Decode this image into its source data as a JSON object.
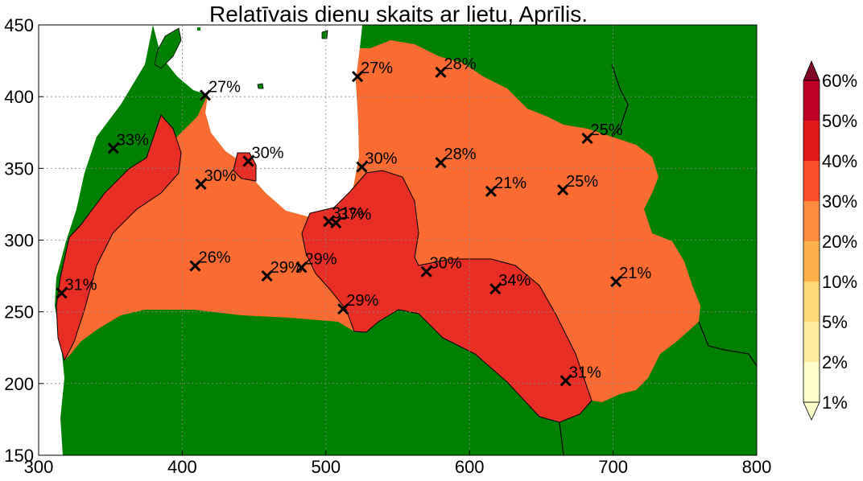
{
  "map": {
    "title": "Relatīvais dienu skaits ar lietu, Aprīlis.",
    "x_ticks": [
      "300",
      "400",
      "500",
      "600",
      "700",
      "800"
    ],
    "y_ticks": [
      "150",
      "200",
      "250",
      "300",
      "350",
      "400",
      "450"
    ],
    "xlim": [
      300,
      800
    ],
    "ylim": [
      150,
      450
    ],
    "grid": true,
    "colors": {
      "land_outside": "#008000",
      "sea": "#ffffff",
      "zone_20_30": "#fc6b32",
      "zone_30_40": "#e82e25"
    },
    "stations": [
      {
        "x": 316,
        "y": 263,
        "label": "31%"
      },
      {
        "x": 352,
        "y": 364,
        "label": "33%"
      },
      {
        "x": 416,
        "y": 401,
        "label": "27%"
      },
      {
        "x": 446,
        "y": 355,
        "label": "30%"
      },
      {
        "x": 413,
        "y": 339,
        "label": "30%"
      },
      {
        "x": 409,
        "y": 282,
        "label": "26%"
      },
      {
        "x": 459,
        "y": 275,
        "label": "29%"
      },
      {
        "x": 483,
        "y": 281,
        "label": "29%"
      },
      {
        "x": 502,
        "y": 313,
        "label": "31%"
      },
      {
        "x": 507,
        "y": 312,
        "label": "37%"
      },
      {
        "x": 512,
        "y": 252,
        "label": "29%"
      },
      {
        "x": 522,
        "y": 414,
        "label": "27%"
      },
      {
        "x": 525,
        "y": 351,
        "label": "30%"
      },
      {
        "x": 580,
        "y": 417,
        "label": "28%"
      },
      {
        "x": 580,
        "y": 354,
        "label": "28%"
      },
      {
        "x": 570,
        "y": 278,
        "label": "30%"
      },
      {
        "x": 615,
        "y": 334,
        "label": "21%"
      },
      {
        "x": 618,
        "y": 266,
        "label": "34%"
      },
      {
        "x": 665,
        "y": 335,
        "label": "25%"
      },
      {
        "x": 682,
        "y": 371,
        "label": "25%"
      },
      {
        "x": 702,
        "y": 271,
        "label": "21%"
      },
      {
        "x": 667,
        "y": 202,
        "label": "31%"
      }
    ]
  },
  "colorbar": {
    "levels": [
      "1%",
      "2%",
      "5%",
      "10%",
      "20%",
      "30%",
      "40%",
      "50%",
      "60%"
    ],
    "colors": [
      "#ffffcc",
      "#ffeda0",
      "#fed976",
      "#feb24c",
      "#fd8d3c",
      "#fc4e2a",
      "#e31a1c",
      "#bd0026",
      "#800026"
    ]
  }
}
